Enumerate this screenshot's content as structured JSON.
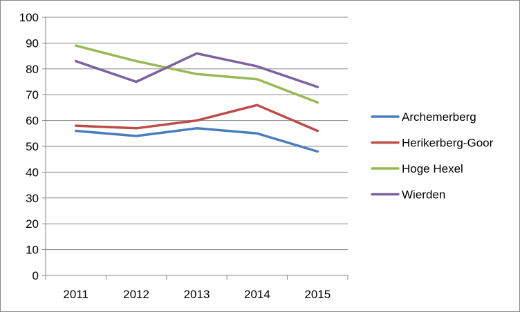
{
  "chart_data": {
    "type": "line",
    "title": "",
    "xlabel": "",
    "ylabel": "",
    "categories": [
      "2011",
      "2012",
      "2013",
      "2014",
      "2015"
    ],
    "ylim": [
      0,
      100
    ],
    "yticks": [
      0,
      10,
      20,
      30,
      40,
      50,
      60,
      70,
      80,
      90,
      100
    ],
    "grid": true,
    "legend_position": "right",
    "series": [
      {
        "name": "Archemerberg",
        "color": "#4a7ebb",
        "values": [
          56,
          54,
          57,
          55,
          48
        ]
      },
      {
        "name": "Herikerberg-Goor",
        "color": "#be4b48",
        "values": [
          58,
          57,
          60,
          66,
          56
        ]
      },
      {
        "name": "Hoge Hexel",
        "color": "#98b954",
        "values": [
          89,
          83,
          78,
          76,
          67
        ]
      },
      {
        "name": "Wierden",
        "color": "#7d60a0",
        "values": [
          83,
          75,
          86,
          81,
          73
        ]
      }
    ]
  }
}
